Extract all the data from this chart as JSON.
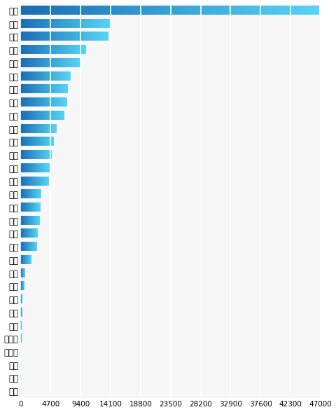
{
  "categories": [
    "广东",
    "广西",
    "江苏",
    "河南",
    "上海",
    "浙江",
    "辽宁",
    "湖南",
    "湖北",
    "安徽",
    "云南",
    "北京",
    "山东",
    "河北",
    "四川",
    "陕西",
    "重庆",
    "福建",
    "甘肃",
    "山西",
    "江西",
    "天津",
    "海南",
    "贵州",
    "吉林",
    "黑龙江",
    "内蒙古",
    "新疆",
    "青海",
    "宁夏"
  ],
  "values": [
    46800,
    14000,
    13800,
    10200,
    9400,
    7800,
    7400,
    7300,
    6800,
    5600,
    5200,
    4900,
    4600,
    4400,
    3200,
    3100,
    3000,
    2700,
    2600,
    1700,
    700,
    650,
    300,
    250,
    200,
    150,
    50,
    40,
    20,
    10
  ],
  "bar_color_dark": "#1b6db5",
  "bar_color_light": "#56d5f6",
  "background_color": "#ffffff",
  "plot_bg_color": "#f7f7f7",
  "xlim": [
    0,
    47000
  ],
  "xticks": [
    0,
    4700,
    9400,
    14100,
    18800,
    23500,
    28200,
    32900,
    37600,
    42300,
    47000
  ],
  "tick_fontsize": 7.5,
  "label_fontsize": 8.5,
  "bar_height": 0.65,
  "grid_color": "#ffffff",
  "grid_linewidth": 1.2
}
